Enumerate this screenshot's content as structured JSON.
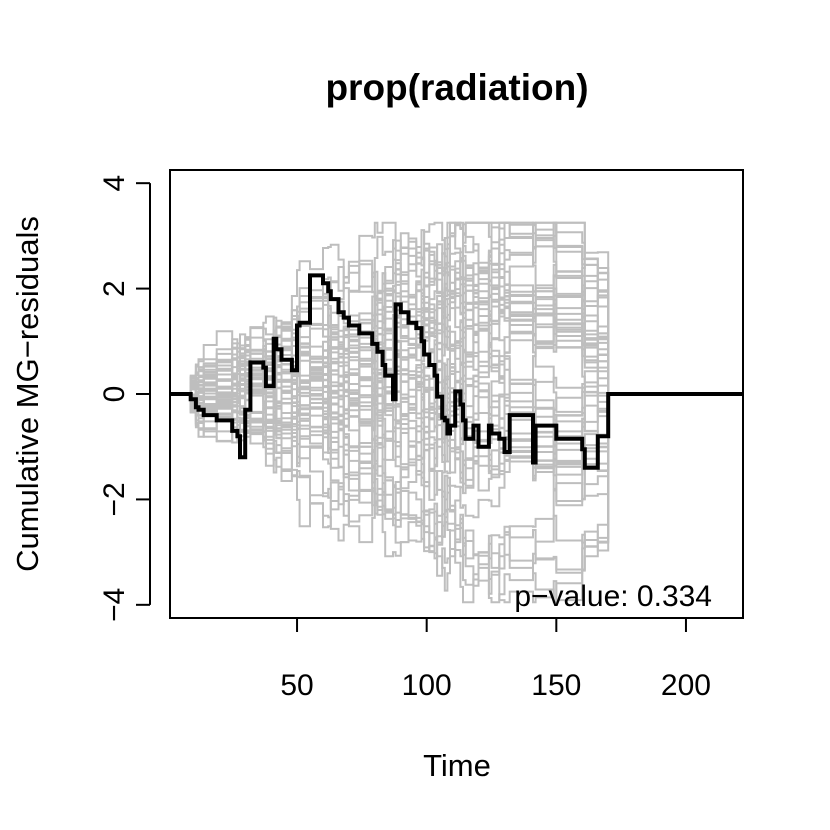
{
  "chart_data": {
    "type": "line",
    "title": "prop(radiation)",
    "xlabel": "Time",
    "ylabel": "Cumulative MG−residuals",
    "xlim": [
      1,
      222
    ],
    "ylim": [
      -4.25,
      4.25
    ],
    "x_ticks": [
      50,
      100,
      150,
      200
    ],
    "y_ticks": [
      -4,
      -2,
      0,
      2,
      4
    ],
    "x_tick_labels": [
      "50",
      "100",
      "150",
      "200"
    ],
    "y_tick_labels": [
      "−4",
      "−2",
      "0",
      "2",
      "4"
    ],
    "grid": false,
    "annotation": "p−value: 0.334",
    "annotation_position": "bottom-right",
    "colors": {
      "observed": "#000000",
      "simulated": "#bebebe"
    },
    "observed": {
      "step": true,
      "x": [
        1,
        9,
        11,
        12,
        14,
        19,
        25,
        27,
        28,
        30,
        32,
        37,
        38,
        41,
        42,
        44,
        48,
        50,
        51,
        55,
        60,
        62,
        63,
        66,
        68,
        70,
        74,
        79,
        80,
        81,
        83,
        84,
        87,
        88,
        90,
        93,
        96,
        98,
        99,
        101,
        103,
        104,
        106,
        107,
        108,
        109,
        111,
        113,
        114,
        115,
        118,
        120,
        124,
        125,
        128,
        130,
        132,
        141,
        142,
        149,
        150,
        160,
        161,
        166,
        170,
        222
      ],
      "y": [
        0,
        -0.1,
        -0.25,
        -0.3,
        -0.4,
        -0.5,
        -0.7,
        -0.8,
        -1.2,
        -0.3,
        0.6,
        0.5,
        0.15,
        1.05,
        0.85,
        0.65,
        0.45,
        1.3,
        1.35,
        2.25,
        2.1,
        1.95,
        1.8,
        1.55,
        1.45,
        1.3,
        1.15,
        0.95,
        0.95,
        0.8,
        0.55,
        0.35,
        -0.1,
        1.7,
        1.55,
        1.35,
        1.25,
        1.0,
        0.75,
        0.55,
        0.35,
        -0.05,
        -0.45,
        -0.5,
        -0.75,
        -0.6,
        0.05,
        -0.2,
        -0.5,
        -0.85,
        -0.6,
        -1.0,
        -0.6,
        -0.75,
        -0.85,
        -1.1,
        -0.4,
        -1.3,
        -0.6,
        -0.6,
        -0.85,
        -1.05,
        -1.4,
        -0.8,
        0,
        0
      ]
    },
    "simulated_count": 50,
    "simulated_range": [
      -3.95,
      3.25
    ]
  }
}
